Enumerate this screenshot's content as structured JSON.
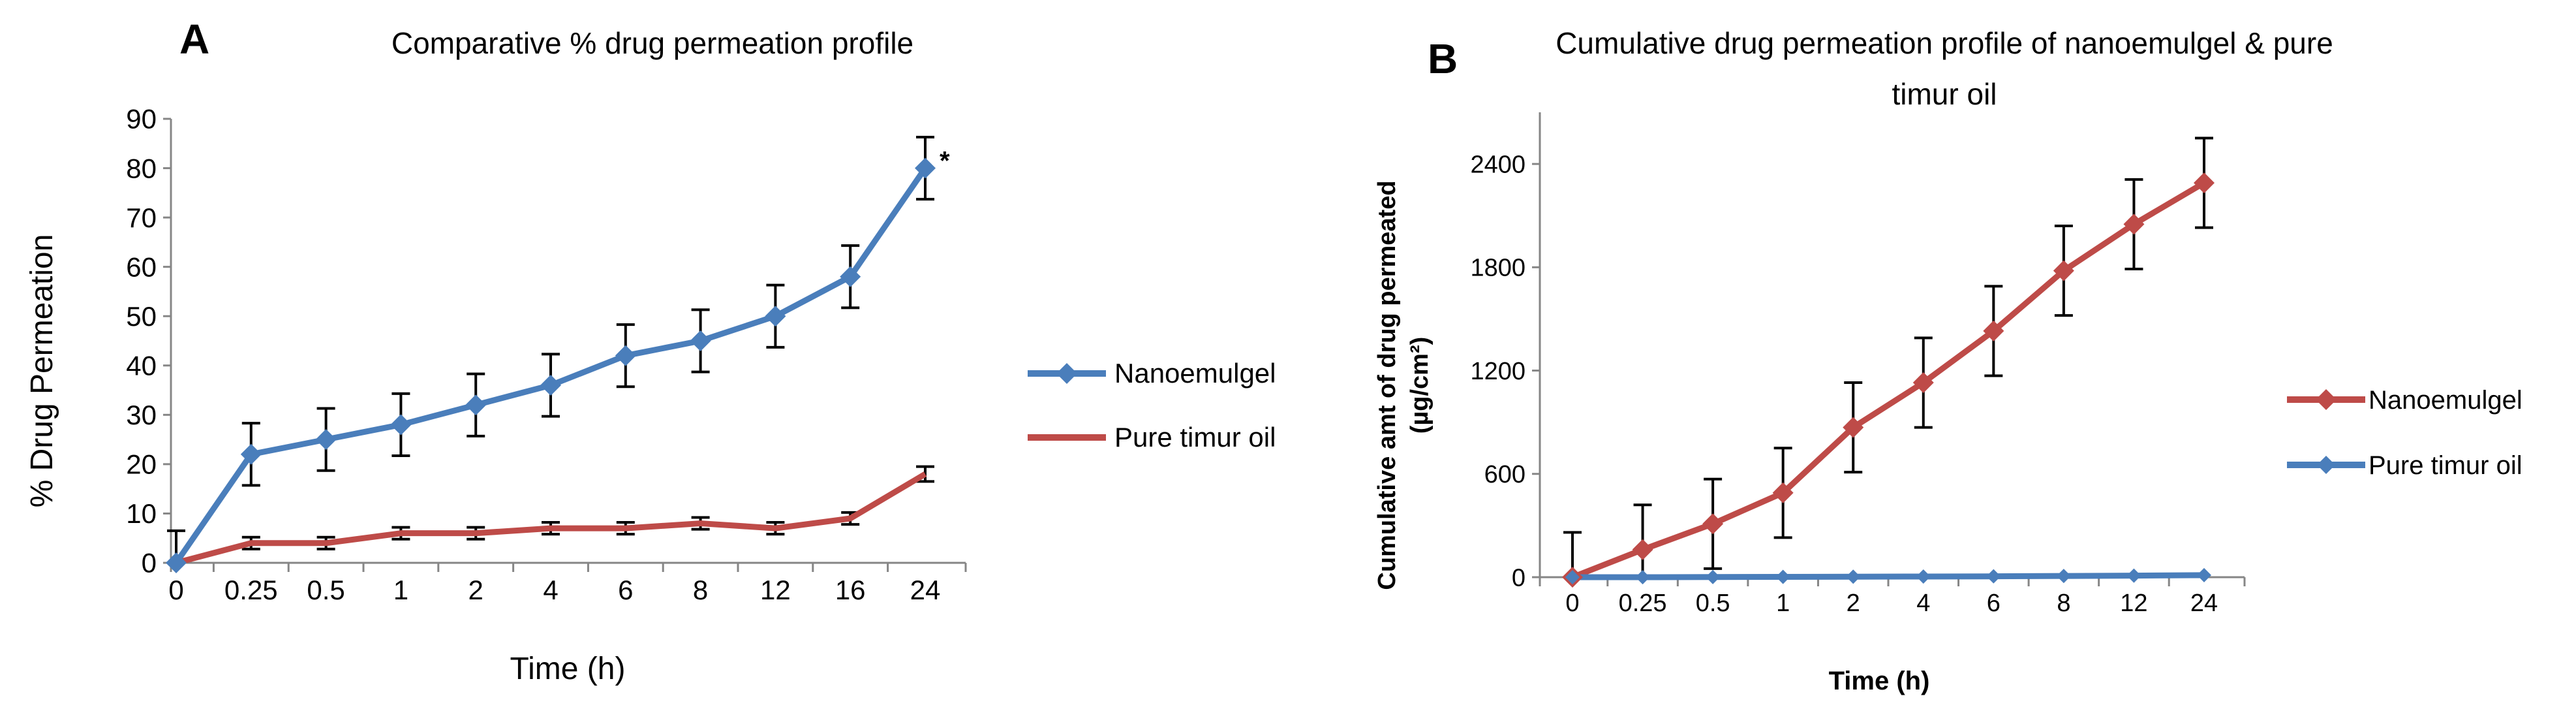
{
  "chart_data": [
    {
      "panel_label": "A",
      "type": "line",
      "title": "Comparative % drug permeation profile",
      "xlabel": "Time (h)",
      "ylabel": "% Drug Permeation",
      "categories": [
        "0",
        "0.25",
        "0.5",
        "1",
        "2",
        "4",
        "6",
        "8",
        "12",
        "16",
        "24"
      ],
      "ylim": [
        0,
        90
      ],
      "yticks": [
        0,
        10,
        20,
        30,
        40,
        50,
        60,
        70,
        80,
        90
      ],
      "annotation": "*",
      "legend_position": "right",
      "series": [
        {
          "name": "Nanoemulgel",
          "color": "#4a7ebb",
          "marker": "diamond",
          "values": [
            0,
            22,
            25,
            28,
            32,
            36,
            42,
            45,
            50,
            58,
            80
          ],
          "errors": [
            6.5,
            6.3,
            6.3,
            6.3,
            6.3,
            6.3,
            6.3,
            6.3,
            6.3,
            6.3,
            6.3
          ]
        },
        {
          "name": "Pure timur oil",
          "color": "#be4b48",
          "marker": "none",
          "values": [
            0,
            4,
            4,
            6,
            6,
            7,
            7,
            8,
            7,
            9,
            18
          ],
          "errors": [
            0,
            1.2,
            1.2,
            1.2,
            1.2,
            1.2,
            1.2,
            1.2,
            1.2,
            1.2,
            1.5
          ]
        }
      ]
    },
    {
      "panel_label": "B",
      "type": "line",
      "title": "Cumulative drug permeation profile of nanoemulgel & pure timur oil",
      "title_lines": [
        "Cumulative drug permeation profile of nanoemulgel & pure",
        "timur oil"
      ],
      "xlabel": "Time (h)",
      "ylabel": "Cumulative amt of drug permeated (µg/cm²)",
      "ylabel_lines": [
        "Cumulative amt of drug permeated",
        "(µg/cm²)"
      ],
      "categories": [
        "0",
        "0.25",
        "0.5",
        "1",
        "2",
        "4",
        "6",
        "8",
        "12",
        "24"
      ],
      "ylim": [
        0,
        2700
      ],
      "yticks": [
        0,
        600,
        1200,
        1800,
        2400
      ],
      "legend_position": "right",
      "series": [
        {
          "name": "Nanoemulgel",
          "color": "#be4b48",
          "marker": "diamond",
          "values": [
            0,
            160,
            310,
            490,
            870,
            1130,
            1430,
            1780,
            2050,
            2290
          ],
          "errors": [
            260,
            260,
            260,
            260,
            260,
            260,
            260,
            260,
            260,
            260
          ]
        },
        {
          "name": "Pure timur oil",
          "color": "#4a7ebb",
          "marker": "diamond",
          "values": [
            0,
            0,
            1,
            2,
            3,
            4,
            5,
            7,
            9,
            12
          ],
          "errors": [
            0,
            0,
            0,
            0,
            0,
            0,
            0,
            0,
            0,
            0
          ]
        }
      ]
    }
  ]
}
